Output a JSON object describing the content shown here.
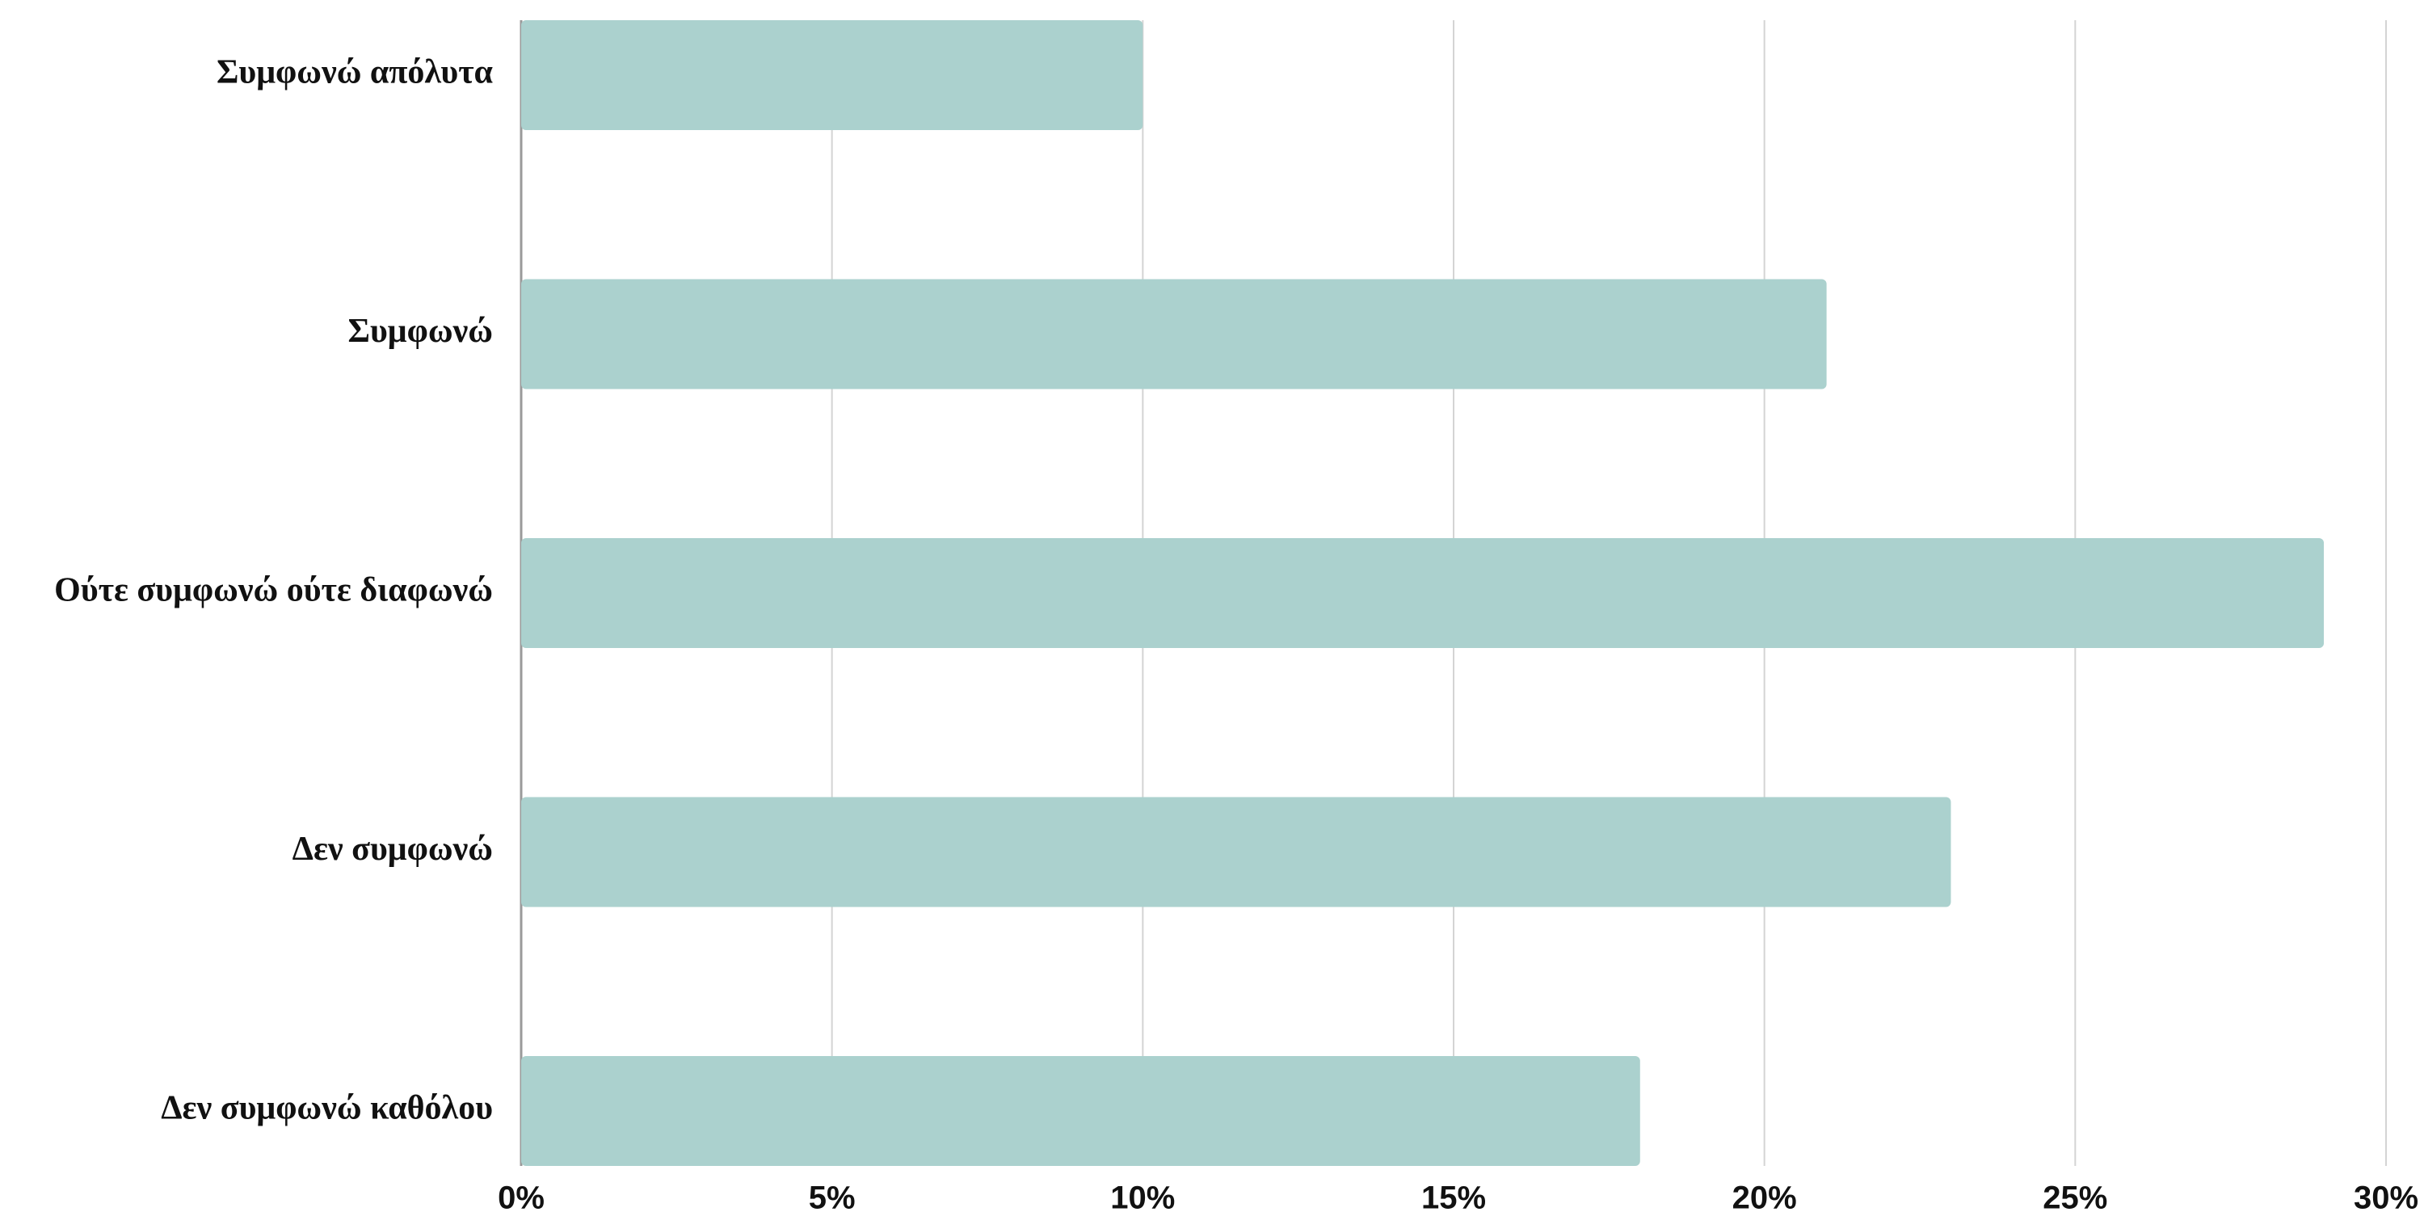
{
  "chart_data": {
    "type": "bar",
    "orientation": "horizontal",
    "categories": [
      "Συμφωνώ απόλυτα",
      "Συμφωνώ",
      "Ούτε συμφωνώ ούτε διαφωνώ",
      "Δεν συμφωνώ",
      "Δεν συμφωνώ καθόλου"
    ],
    "values": [
      10,
      21,
      29,
      23,
      18
    ],
    "color": "#abd1ce",
    "xlim": [
      0,
      30
    ],
    "xticks": [
      {
        "value": 0,
        "label": "0%"
      },
      {
        "value": 5,
        "label": "5%"
      },
      {
        "value": 10,
        "label": "10%"
      },
      {
        "value": 15,
        "label": "15%"
      },
      {
        "value": 20,
        "label": "20%"
      },
      {
        "value": 25,
        "label": "25%"
      },
      {
        "value": 30,
        "label": "30%"
      }
    ],
    "grid": true
  }
}
